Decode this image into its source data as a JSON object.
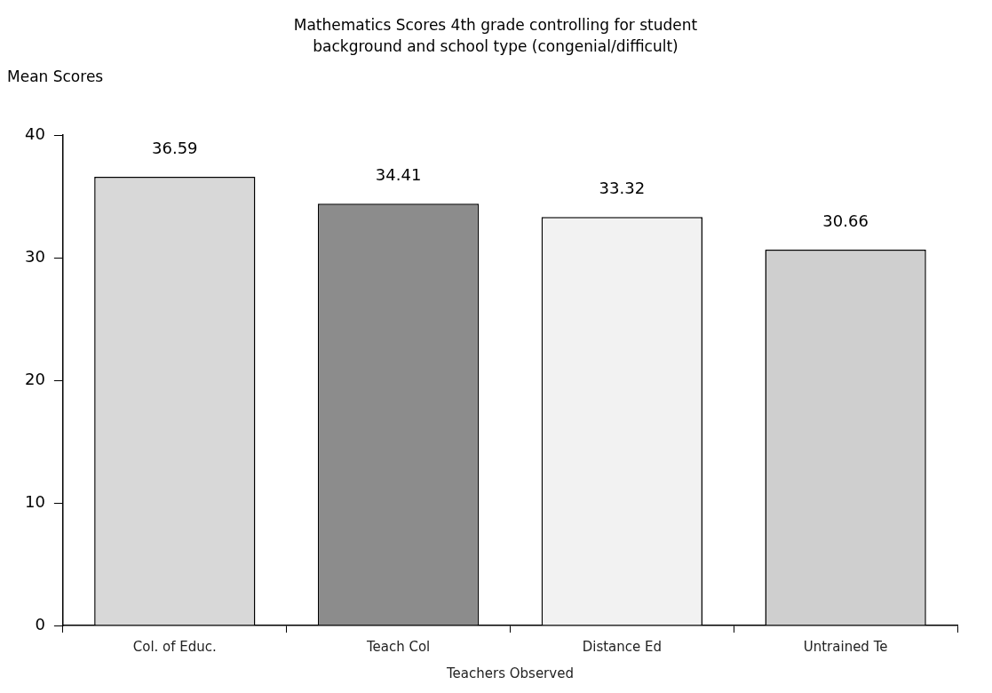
{
  "chart_data": {
    "type": "bar",
    "title": "Mathematics Scores 4th grade controlling for student background and school type (congenial/difficult)",
    "ylabel": "Mean Scores",
    "xlabel": "Teachers Observed",
    "categories": [
      "Col. of Educ.",
      "Teach Col",
      "Distance Ed",
      "Untrained Te"
    ],
    "values": [
      36.59,
      34.41,
      33.32,
      30.66
    ],
    "colors": [
      "#d8d8d8",
      "#8c8c8c",
      "#f2f2f2",
      "#cfcfcf"
    ],
    "ylim": [
      0,
      40
    ],
    "yticks": [
      0,
      10,
      20,
      30,
      40
    ],
    "grid": false,
    "legend": false,
    "data_labels": true
  }
}
